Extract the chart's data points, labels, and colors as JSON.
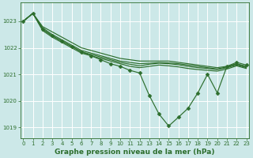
{
  "bg_color": "#cce8e8",
  "grid_color": "#ffffff",
  "line_color": "#2d6e2d",
  "series": [
    [
      1023.0,
      1023.3,
      1022.8,
      1022.6,
      1022.4,
      1022.2,
      1022.0,
      1021.9,
      1021.8,
      1021.7,
      1021.6,
      1021.55,
      1021.5,
      1021.5,
      1021.5,
      1021.5,
      1021.45,
      1021.4,
      1021.35,
      1021.3,
      1021.25,
      1021.3,
      1021.4,
      1021.3
    ],
    [
      1023.0,
      1023.3,
      1022.75,
      1022.5,
      1022.3,
      1022.1,
      1021.9,
      1021.8,
      1021.7,
      1021.6,
      1021.5,
      1021.45,
      1021.4,
      1021.42,
      1021.44,
      1021.43,
      1021.4,
      1021.35,
      1021.3,
      1021.25,
      1021.2,
      1021.28,
      1021.38,
      1021.28
    ],
    [
      1023.0,
      1023.3,
      1022.7,
      1022.45,
      1022.25,
      1022.05,
      1021.85,
      1021.75,
      1021.65,
      1021.55,
      1021.45,
      1021.38,
      1021.32,
      1021.38,
      1021.42,
      1021.4,
      1021.36,
      1021.3,
      1021.25,
      1021.22,
      1021.18,
      1021.25,
      1021.35,
      1021.25
    ],
    [
      1023.0,
      1023.3,
      1022.65,
      1022.4,
      1022.2,
      1022.0,
      1021.8,
      1021.7,
      1021.6,
      1021.5,
      1021.4,
      1021.3,
      1021.25,
      1021.3,
      1021.35,
      1021.32,
      1021.28,
      1021.22,
      1021.18,
      1021.15,
      1021.12,
      1021.2,
      1021.32,
      1021.22
    ],
    [
      1023.0,
      1023.3,
      1022.7,
      1022.45,
      1022.25,
      1022.05,
      1021.85,
      1021.7,
      1021.55,
      1021.4,
      1021.3,
      1021.15,
      1021.05,
      1020.2,
      1019.5,
      1019.05,
      1019.38,
      1019.72,
      1020.3,
      1021.0,
      1020.3,
      1021.3,
      1021.45,
      1021.35
    ]
  ],
  "has_markers": [
    false,
    false,
    false,
    false,
    true
  ],
  "ylim": [
    1018.6,
    1023.7
  ],
  "yticks": [
    1019,
    1020,
    1021,
    1022,
    1023
  ],
  "xticks": [
    0,
    1,
    2,
    3,
    4,
    5,
    6,
    7,
    8,
    9,
    10,
    11,
    12,
    13,
    14,
    15,
    16,
    17,
    18,
    19,
    20,
    21,
    22,
    23
  ],
  "xlabel": "Graphe pression niveau de la mer (hPa)",
  "xlabel_fontsize": 6.5,
  "tick_fontsize": 5.0,
  "linewidth": 0.85,
  "marker_size": 2.5
}
